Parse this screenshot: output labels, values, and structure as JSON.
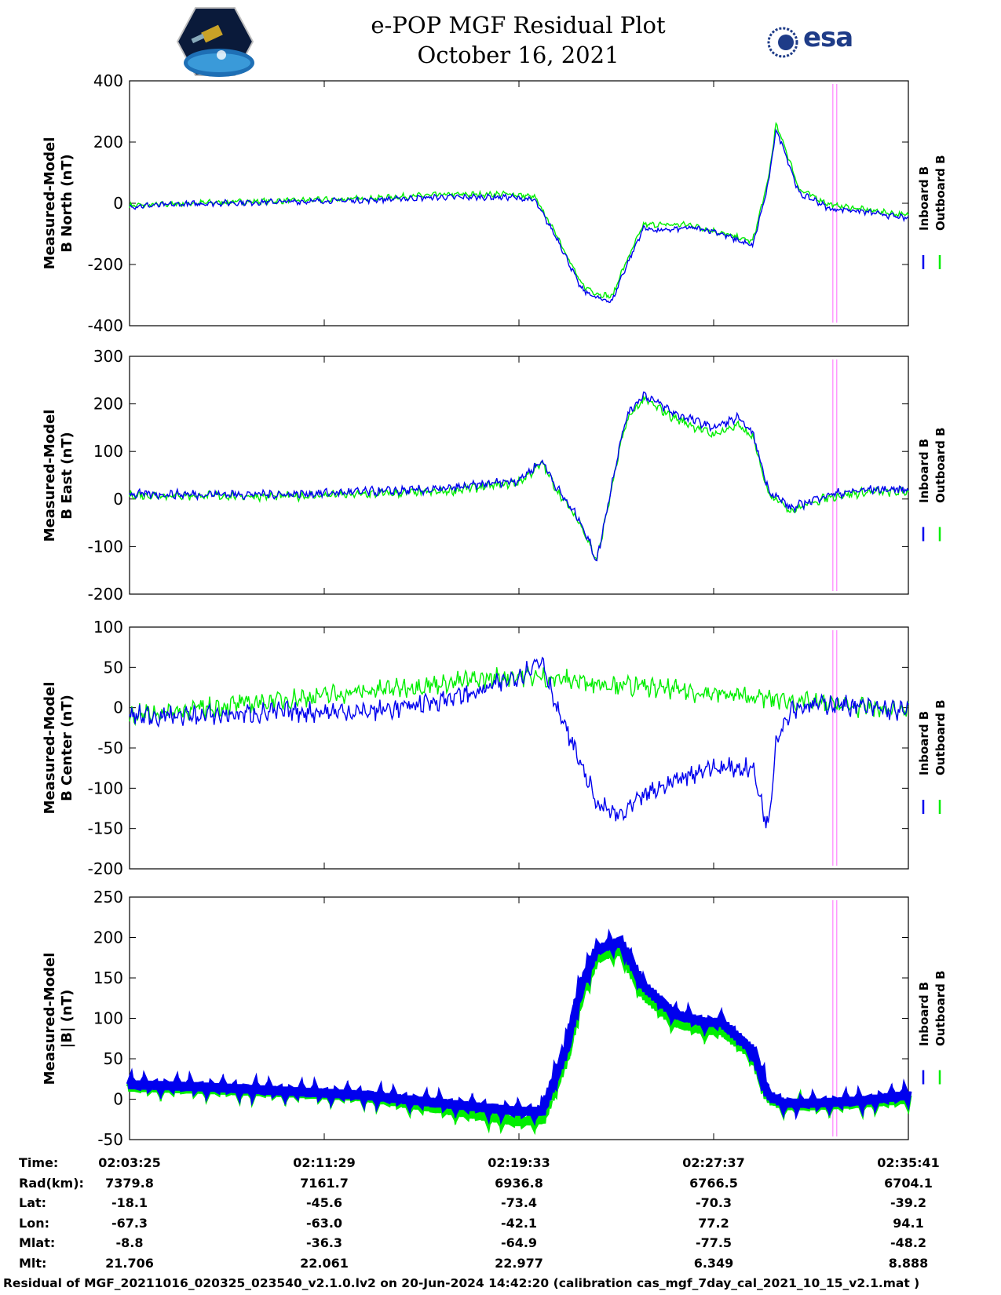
{
  "title": [
    "e-POP MGF Residual Plot",
    "October 16, 2021"
  ],
  "esa_logo_text": "esa",
  "legend": {
    "inboard": "Inboard B",
    "outboard": "Outboard B",
    "inboard_color": "#0000ee",
    "outboard_color": "#00ee00",
    "marker_color": "#ff99ff"
  },
  "chart_data": [
    {
      "type": "line",
      "ylabel": [
        "Measured-Model",
        "B North (nT)"
      ],
      "ylim": [
        -400,
        400
      ],
      "yticks": [
        400,
        200,
        0,
        -200,
        -400
      ],
      "series": [
        {
          "name": "Inboard B",
          "x": [
            0,
            0.05,
            0.1,
            0.2,
            0.3,
            0.4,
            0.45,
            0.49,
            0.52,
            0.55,
            0.58,
            0.6,
            0.62,
            0.63,
            0.66,
            0.68,
            0.72,
            0.75,
            0.8,
            0.82,
            0.83,
            0.84,
            0.86,
            0.88,
            0.9,
            0.92,
            0.95,
            1.0
          ],
          "y": [
            -10,
            -5,
            0,
            5,
            10,
            20,
            20,
            20,
            10,
            -120,
            -280,
            -310,
            -320,
            -250,
            -80,
            -90,
            -80,
            -90,
            -140,
            60,
            240,
            180,
            30,
            10,
            -20,
            -20,
            -30,
            -50
          ]
        },
        {
          "name": "Outboard B",
          "x": [
            0,
            0.1,
            0.3,
            0.4,
            0.49,
            0.52,
            0.55,
            0.58,
            0.6,
            0.62,
            0.63,
            0.66,
            0.72,
            0.8,
            0.82,
            0.83,
            0.84,
            0.86,
            0.9,
            1.0
          ],
          "y": [
            -8,
            2,
            15,
            28,
            30,
            20,
            -110,
            -265,
            -295,
            -305,
            -235,
            -70,
            -70,
            -125,
            75,
            255,
            195,
            45,
            -5,
            -40
          ]
        }
      ]
    },
    {
      "type": "line",
      "ylabel": [
        "Measured-Model",
        "B East (nT)"
      ],
      "ylim": [
        -200,
        300
      ],
      "yticks": [
        300,
        200,
        100,
        0,
        -100,
        -200
      ],
      "series": [
        {
          "name": "Inboard B",
          "x": [
            0,
            0.1,
            0.2,
            0.3,
            0.4,
            0.45,
            0.5,
            0.53,
            0.55,
            0.58,
            0.6,
            0.63,
            0.64,
            0.66,
            0.7,
            0.75,
            0.78,
            0.8,
            0.82,
            0.85,
            0.88,
            0.9,
            0.95,
            1.0
          ],
          "y": [
            10,
            10,
            10,
            15,
            20,
            30,
            40,
            80,
            20,
            -50,
            -130,
            120,
            180,
            220,
            180,
            150,
            170,
            140,
            20,
            -20,
            0,
            10,
            20,
            20
          ]
        },
        {
          "name": "Outboard B",
          "x": [
            0,
            0.1,
            0.2,
            0.3,
            0.4,
            0.45,
            0.5,
            0.53,
            0.55,
            0.58,
            0.6,
            0.63,
            0.64,
            0.66,
            0.7,
            0.75,
            0.78,
            0.8,
            0.82,
            0.85,
            0.88,
            0.9,
            0.95,
            1.0
          ],
          "y": [
            8,
            7,
            6,
            10,
            15,
            25,
            35,
            75,
            15,
            -55,
            -130,
            110,
            170,
            210,
            170,
            135,
            155,
            130,
            15,
            -25,
            -5,
            5,
            15,
            15
          ]
        }
      ]
    },
    {
      "type": "line",
      "ylabel": [
        "Measured-Model",
        "B Center (nT)"
      ],
      "ylim": [
        -200,
        100
      ],
      "yticks": [
        100,
        50,
        0,
        -50,
        -100,
        -150,
        -200
      ],
      "series": [
        {
          "name": "Inboard B",
          "x": [
            0,
            0.1,
            0.2,
            0.3,
            0.35,
            0.4,
            0.45,
            0.5,
            0.53,
            0.55,
            0.58,
            0.6,
            0.63,
            0.66,
            0.7,
            0.74,
            0.8,
            0.82,
            0.83,
            0.85,
            0.9,
            0.95,
            1.0
          ],
          "y": [
            -10,
            -10,
            -5,
            -5,
            0,
            10,
            20,
            40,
            60,
            -5,
            -70,
            -120,
            -135,
            -110,
            -90,
            -75,
            -75,
            -150,
            -40,
            0,
            5,
            0,
            -5
          ]
        },
        {
          "name": "Outboard B",
          "x": [
            0,
            0.5,
            1.0
          ],
          "y": [
            -10,
            40,
            -5
          ]
        }
      ]
    },
    {
      "type": "line",
      "ylabel": [
        "Measured-Model",
        "|B| (nT)"
      ],
      "ylim": [
        -50,
        250
      ],
      "yticks": [
        250,
        200,
        150,
        100,
        50,
        0,
        -50
      ],
      "xticks": [
        "02:03:25",
        "02:11:29",
        "02:19:33",
        "02:27:37",
        "02:35:41"
      ],
      "series": [
        {
          "name": "Inboard B",
          "x": [
            0,
            0.1,
            0.2,
            0.3,
            0.4,
            0.45,
            0.5,
            0.53,
            0.56,
            0.58,
            0.6,
            0.63,
            0.66,
            0.7,
            0.74,
            0.76,
            0.8,
            0.82,
            0.84,
            0.88,
            0.94,
            1.0
          ],
          "y": [
            18,
            15,
            10,
            5,
            -5,
            -10,
            -15,
            -15,
            60,
            140,
            185,
            195,
            140,
            105,
            95,
            95,
            60,
            5,
            -5,
            -5,
            -2,
            5
          ]
        },
        {
          "name": "Outboard B",
          "x": [
            0,
            0.1,
            0.2,
            0.3,
            0.4,
            0.45,
            0.5,
            0.53,
            0.56,
            0.58,
            0.6,
            0.63,
            0.66,
            0.7,
            0.74,
            0.76,
            0.8,
            0.82,
            0.84,
            0.88,
            0.94,
            1.0
          ],
          "y": [
            15,
            12,
            8,
            3,
            -12,
            -20,
            -28,
            -25,
            50,
            130,
            175,
            185,
            130,
            95,
            85,
            85,
            55,
            2,
            -8,
            -8,
            -5,
            0
          ]
        }
      ]
    }
  ],
  "ephemeris": {
    "rows": [
      {
        "label": "Time:",
        "values": [
          "02:03:25",
          "02:11:29",
          "02:19:33",
          "02:27:37",
          "02:35:41"
        ]
      },
      {
        "label": "Rad(km):",
        "values": [
          "7379.8",
          "7161.7",
          "6936.8",
          "6766.5",
          "6704.1"
        ]
      },
      {
        "label": "Lat:",
        "values": [
          "-18.1",
          "-45.6",
          "-73.4",
          "-70.3",
          "-39.2"
        ]
      },
      {
        "label": "Lon:",
        "values": [
          "-67.3",
          "-63.0",
          "-42.1",
          "77.2",
          "94.1"
        ]
      },
      {
        "label": "Mlat:",
        "values": [
          "-8.8",
          "-36.3",
          "-64.9",
          "-77.5",
          "-48.2"
        ]
      },
      {
        "label": "Mlt:",
        "values": [
          "21.706",
          "22.061",
          "22.977",
          "6.349",
          "8.888"
        ]
      }
    ]
  },
  "footer": "Residual of MGF_20211016_020325_023540_v2.1.0.lv2 on 20-Jun-2024 14:42:20 (calibration cas_mgf_7day_cal_2021_10_15_v2.1.mat )"
}
